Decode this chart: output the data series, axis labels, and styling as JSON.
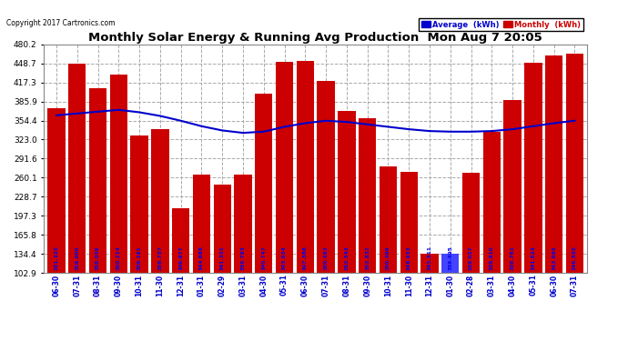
{
  "title": "Monthly Solar Energy & Running Avg Production  Mon Aug 7 20:05",
  "copyright": "Copyright 2017 Cartronics.com",
  "categories": [
    "06-30",
    "07-31",
    "08-31",
    "09-30",
    "10-31",
    "11-30",
    "12-31",
    "01-31",
    "02-29",
    "03-31",
    "04-30",
    "05-31",
    "06-30",
    "07-31",
    "08-31",
    "09-30",
    "10-31",
    "11-30",
    "12-31",
    "01-30",
    "02-28",
    "03-31",
    "04-30",
    "05-31",
    "06-30",
    "07-31"
  ],
  "bar_labels": [
    "351.325",
    "356.000",
    "358.039",
    "360.214",
    "359.191",
    "356.757",
    "349.977",
    "344.886",
    "341.351",
    "339.793",
    "340.747",
    "343.934",
    "347.368",
    "350.482",
    "352.543",
    "352.832",
    "350.499",
    "348.933",
    "343.511",
    "339.495",
    "339.027",
    "338.910",
    "339.761",
    "341.824",
    "343.985",
    "346.585"
  ],
  "monthly_values": [
    375,
    448,
    408,
    430,
    330,
    340,
    210,
    265,
    248,
    265,
    398,
    452,
    453,
    420,
    370,
    358,
    278,
    270,
    135,
    135,
    268,
    335,
    388,
    450,
    462,
    465
  ],
  "avg_values": [
    363,
    366,
    369,
    372,
    368,
    362,
    354,
    345,
    338,
    334,
    336,
    344,
    350,
    354,
    352,
    348,
    344,
    340,
    337,
    336,
    336,
    337,
    340,
    345,
    350,
    354
  ],
  "bar_color": "#cc0000",
  "avg_color": "#0000cc",
  "background_color": "#ffffff",
  "plot_bg_color": "#ffffff",
  "ylim": [
    102.9,
    480.2
  ],
  "yticks": [
    102.9,
    134.4,
    165.8,
    197.3,
    228.7,
    260.1,
    291.6,
    323.0,
    354.4,
    385.9,
    417.3,
    448.7,
    480.2
  ],
  "grid_color": "#aaaaaa",
  "legend_avg_color": "#0000cc",
  "legend_monthly_color": "#cc0000",
  "legend_avg_label": "Average  (kWh)",
  "legend_monthly_label": "Monthly  (kWh)",
  "special_bar_idx": 19,
  "special_bar_color": "#4444ff"
}
